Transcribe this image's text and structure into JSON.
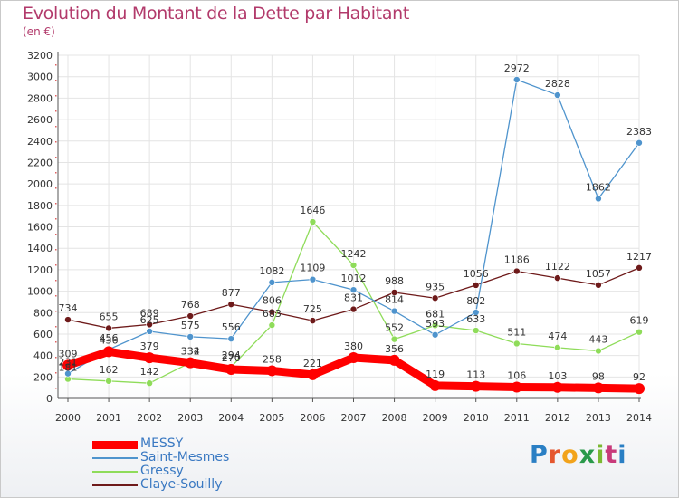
{
  "title": "Evolution du Montant de la Dette par Habitant",
  "subtitle": "(en €)",
  "logo": {
    "text": "Proxiti",
    "colors": [
      "#2a7fc4",
      "#e5562e",
      "#f2a31b",
      "#2a9a4a",
      "#7bb832",
      "#c83a7a",
      "#2a7fc4"
    ]
  },
  "chart_data": {
    "type": "line",
    "title": "Evolution du Montant de la Dette par Habitant",
    "ylabel": "(en €)",
    "xlabel": "",
    "ylim": [
      0,
      3200
    ],
    "yticks": [
      0,
      200,
      400,
      600,
      800,
      1000,
      1200,
      1400,
      1600,
      1800,
      2000,
      2200,
      2400,
      2600,
      2800,
      3000,
      3200
    ],
    "x": [
      "2000",
      "2001",
      "2002",
      "2003",
      "2004",
      "2005",
      "2006",
      "2007",
      "2008",
      "2009",
      "2010",
      "2011",
      "2012",
      "2013",
      "2014"
    ],
    "grid": true,
    "legend_position": "bottom-left",
    "series": [
      {
        "name": "Claye-Souilly",
        "color": "#6e1a1a",
        "values": [
          734,
          655,
          689,
          768,
          877,
          806,
          725,
          831,
          988,
          935,
          1056,
          1186,
          1122,
          1057,
          1217
        ]
      },
      {
        "name": "Gressy",
        "color": "#8fdc5a",
        "values": [
          181,
          162,
          142,
          334,
          294,
          683,
          1646,
          1242,
          552,
          681,
          633,
          511,
          474,
          443,
          619
        ]
      },
      {
        "name": "Saint-Mesmes",
        "color": "#4f94cd",
        "values": [
          231,
          456,
          625,
          575,
          556,
          1082,
          1109,
          1012,
          814,
          593,
          802,
          2972,
          2828,
          1862,
          2383
        ]
      },
      {
        "name": "MESSY",
        "color": "#ff0000",
        "values": [
          309,
          436,
          379,
          332,
          270,
          258,
          221,
          380,
          356,
          119,
          113,
          106,
          103,
          98,
          92
        ]
      }
    ]
  }
}
